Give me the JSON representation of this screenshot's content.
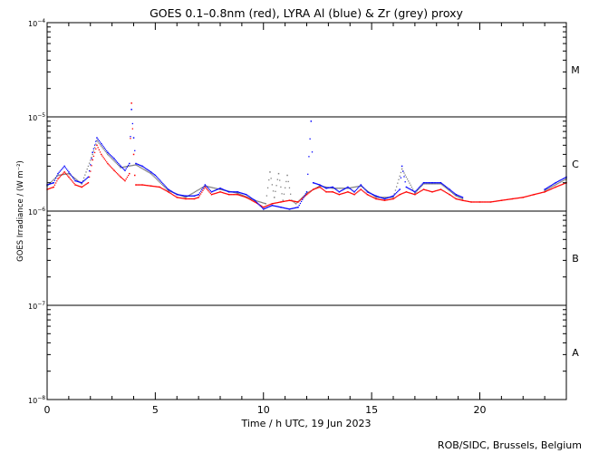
{
  "chart_data": {
    "type": "scatter",
    "title": "GOES 0.1–0.8nm (red), LYRA Al (blue) & Zr (grey) proxy",
    "xlabel": "Time / h UTC, 19 Jun 2023",
    "ylabel": "GOES Irradiance / (W m⁻²)",
    "footer": "ROB/SIDC, Brussels, Belgium",
    "x_range": [
      0,
      24
    ],
    "y_range": [
      1e-08,
      0.0001
    ],
    "y_scale": "log",
    "x_ticks": [
      0,
      5,
      10,
      15,
      20
    ],
    "x_tick_labels": [
      "0",
      "5",
      "10",
      "15",
      "20"
    ],
    "y_ticks": [
      1e-08,
      1e-07,
      1e-06,
      1e-05,
      0.0001
    ],
    "y_tick_labels": [
      {
        "base": "10",
        "exp": "−8"
      },
      {
        "base": "10",
        "exp": "−7"
      },
      {
        "base": "10",
        "exp": "−6"
      },
      {
        "base": "10",
        "exp": "−5"
      },
      {
        "base": "10",
        "exp": "−4"
      }
    ],
    "flare_classes": [
      {
        "label": "A",
        "center": 3.16e-08
      },
      {
        "label": "B",
        "center": 3.16e-07
      },
      {
        "label": "C",
        "center": 3.16e-06
      },
      {
        "label": "M",
        "center": 3.16e-05
      }
    ],
    "reference_lines": [
      1e-07,
      1e-06,
      1e-05
    ],
    "grid": false,
    "legend": "none (series colours given in title)",
    "series": [
      {
        "name": "GOES 0.1–0.8nm",
        "color": "#ff0000",
        "points": [
          [
            0.0,
            1.7e-06
          ],
          [
            0.3,
            1.8e-06
          ],
          [
            0.5,
            2.2e-06
          ],
          [
            0.8,
            2.6e-06
          ],
          [
            1.0,
            2.3e-06
          ],
          [
            1.3,
            1.9e-06
          ],
          [
            1.6,
            1.8e-06
          ],
          [
            1.9,
            2e-06
          ],
          [
            2.1,
            3.5e-06
          ],
          [
            2.3,
            5e-06
          ],
          [
            2.5,
            4e-06
          ],
          [
            2.8,
            3.2e-06
          ],
          [
            3.1,
            2.7e-06
          ],
          [
            3.4,
            2.3e-06
          ],
          [
            3.6,
            2.1e-06
          ],
          [
            3.8,
            2.5e-06
          ],
          [
            3.9,
            1.4e-05
          ],
          [
            4.0,
            4e-06
          ],
          [
            4.05,
            2.4e-06
          ],
          [
            4.1,
            1.9e-06
          ],
          [
            4.4,
            1.9e-06
          ],
          [
            4.8,
            1.85e-06
          ],
          [
            5.2,
            1.8e-06
          ],
          [
            5.6,
            1.6e-06
          ],
          [
            6.0,
            1.4e-06
          ],
          [
            6.4,
            1.35e-06
          ],
          [
            6.8,
            1.35e-06
          ],
          [
            7.0,
            1.4e-06
          ],
          [
            7.3,
            1.8e-06
          ],
          [
            7.6,
            1.5e-06
          ],
          [
            8.0,
            1.6e-06
          ],
          [
            8.4,
            1.5e-06
          ],
          [
            8.8,
            1.5e-06
          ],
          [
            9.2,
            1.4e-06
          ],
          [
            9.6,
            1.25e-06
          ],
          [
            10.0,
            1.1e-06
          ],
          [
            10.4,
            1.2e-06
          ],
          [
            10.8,
            1.25e-06
          ],
          [
            11.2,
            1.3e-06
          ],
          [
            11.6,
            1.25e-06
          ],
          [
            12.0,
            1.5e-06
          ],
          [
            12.3,
            1.7e-06
          ],
          [
            12.6,
            1.8e-06
          ],
          [
            12.9,
            1.6e-06
          ],
          [
            13.2,
            1.6e-06
          ],
          [
            13.5,
            1.5e-06
          ],
          [
            13.9,
            1.6e-06
          ],
          [
            14.2,
            1.5e-06
          ],
          [
            14.5,
            1.7e-06
          ],
          [
            14.8,
            1.5e-06
          ],
          [
            15.2,
            1.35e-06
          ],
          [
            15.6,
            1.3e-06
          ],
          [
            16.0,
            1.35e-06
          ],
          [
            16.3,
            1.5e-06
          ],
          [
            16.6,
            1.6e-06
          ],
          [
            17.0,
            1.5e-06
          ],
          [
            17.4,
            1.7e-06
          ],
          [
            17.8,
            1.6e-06
          ],
          [
            18.2,
            1.7e-06
          ],
          [
            18.6,
            1.5e-06
          ],
          [
            18.9,
            1.35e-06
          ],
          [
            19.2,
            1.3e-06
          ],
          [
            19.6,
            1.25e-06
          ],
          [
            20.0,
            1.25e-06
          ],
          [
            20.5,
            1.25e-06
          ],
          [
            21.0,
            1.3e-06
          ],
          [
            21.5,
            1.35e-06
          ],
          [
            22.0,
            1.4e-06
          ],
          [
            22.5,
            1.5e-06
          ],
          [
            23.0,
            1.6e-06
          ],
          [
            23.5,
            1.8e-06
          ],
          [
            24.0,
            2e-06
          ]
        ]
      },
      {
        "name": "LYRA Al",
        "color": "#0000ff",
        "points": [
          [
            0.0,
            1.9e-06
          ],
          [
            0.3,
            2e-06
          ],
          [
            0.5,
            2.5e-06
          ],
          [
            0.8,
            3e-06
          ],
          [
            1.0,
            2.6e-06
          ],
          [
            1.3,
            2.1e-06
          ],
          [
            1.6,
            2e-06
          ],
          [
            1.9,
            2.3e-06
          ],
          [
            2.1,
            4.2e-06
          ],
          [
            2.3,
            6e-06
          ],
          [
            2.5,
            5.2e-06
          ],
          [
            2.8,
            4.2e-06
          ],
          [
            3.1,
            3.6e-06
          ],
          [
            3.4,
            3e-06
          ],
          [
            3.6,
            2.7e-06
          ],
          [
            3.8,
            3.2e-06
          ],
          [
            3.9,
            1.2e-05
          ],
          [
            4.0,
            6e-06
          ],
          [
            4.1,
            3.2e-06
          ],
          [
            4.4,
            3e-06
          ],
          [
            4.8,
            2.6e-06
          ],
          [
            5.0,
            2.4e-06
          ],
          [
            5.6,
            1.7e-06
          ],
          [
            6.0,
            1.5e-06
          ],
          [
            6.4,
            1.45e-06
          ],
          [
            6.8,
            1.45e-06
          ],
          [
            7.0,
            1.5e-06
          ],
          [
            7.3,
            1.9e-06
          ],
          [
            7.6,
            1.6e-06
          ],
          [
            8.0,
            1.75e-06
          ],
          [
            8.4,
            1.6e-06
          ],
          [
            8.8,
            1.6e-06
          ],
          [
            9.2,
            1.5e-06
          ],
          [
            9.6,
            1.3e-06
          ],
          [
            10.0,
            1.05e-06
          ],
          [
            10.4,
            1.15e-06
          ],
          [
            10.8,
            1.1e-06
          ],
          [
            11.2,
            1.05e-06
          ],
          [
            11.6,
            1.1e-06
          ],
          [
            12.0,
            1.6e-06
          ],
          [
            12.2,
            9e-06
          ],
          [
            12.3,
            2e-06
          ],
          [
            12.6,
            1.9e-06
          ],
          [
            12.9,
            1.75e-06
          ],
          [
            13.2,
            1.8e-06
          ],
          [
            13.5,
            1.6e-06
          ],
          [
            13.9,
            1.8e-06
          ],
          [
            14.2,
            1.6e-06
          ],
          [
            14.5,
            1.9e-06
          ],
          [
            14.8,
            1.6e-06
          ],
          [
            15.2,
            1.45e-06
          ],
          [
            15.6,
            1.35e-06
          ],
          [
            16.0,
            1.45e-06
          ],
          [
            16.3,
            1.7e-06
          ],
          [
            16.4,
            3e-06
          ],
          [
            16.6,
            1.8e-06
          ],
          [
            17.0,
            1.6e-06
          ],
          [
            17.4,
            2e-06
          ],
          [
            17.8,
            2e-06
          ],
          [
            18.2,
            2e-06
          ],
          [
            18.6,
            1.7e-06
          ],
          [
            18.9,
            1.5e-06
          ],
          [
            19.2,
            1.4e-06
          ],
          [
            23.0,
            1.7e-06
          ],
          [
            23.5,
            2e-06
          ],
          [
            24.0,
            2.3e-06
          ]
        ]
      },
      {
        "name": "Zr",
        "color": "#808080",
        "points": [
          [
            0.0,
            1.85e-06
          ],
          [
            0.5,
            2.4e-06
          ],
          [
            1.0,
            2.5e-06
          ],
          [
            1.6,
            1.95e-06
          ],
          [
            2.1,
            4e-06
          ],
          [
            2.3,
            5.6e-06
          ],
          [
            2.8,
            4e-06
          ],
          [
            3.4,
            2.9e-06
          ],
          [
            4.1,
            3.1e-06
          ],
          [
            4.8,
            2.5e-06
          ],
          [
            5.6,
            1.65e-06
          ],
          [
            6.4,
            1.4e-06
          ],
          [
            7.3,
            1.85e-06
          ],
          [
            8.0,
            1.7e-06
          ],
          [
            8.8,
            1.55e-06
          ],
          [
            9.6,
            1.3e-06
          ],
          [
            10.1,
            1.2e-06
          ],
          [
            10.3,
            2.6e-06
          ],
          [
            10.5,
            1.4e-06
          ],
          [
            10.7,
            2.5e-06
          ],
          [
            10.9,
            1.3e-06
          ],
          [
            11.1,
            2.4e-06
          ],
          [
            11.3,
            1.3e-06
          ],
          [
            11.5,
            1.2e-06
          ],
          [
            12.0,
            1.55e-06
          ],
          [
            12.6,
            1.85e-06
          ],
          [
            13.2,
            1.75e-06
          ],
          [
            13.9,
            1.75e-06
          ],
          [
            14.5,
            1.85e-06
          ],
          [
            15.2,
            1.4e-06
          ],
          [
            16.0,
            1.4e-06
          ],
          [
            16.4,
            2.8e-06
          ],
          [
            17.0,
            1.55e-06
          ],
          [
            17.4,
            1.95e-06
          ],
          [
            18.2,
            1.95e-06
          ],
          [
            18.9,
            1.45e-06
          ],
          [
            19.2,
            1.35e-06
          ],
          [
            23.0,
            1.65e-06
          ],
          [
            24.0,
            2.2e-06
          ]
        ]
      }
    ]
  }
}
